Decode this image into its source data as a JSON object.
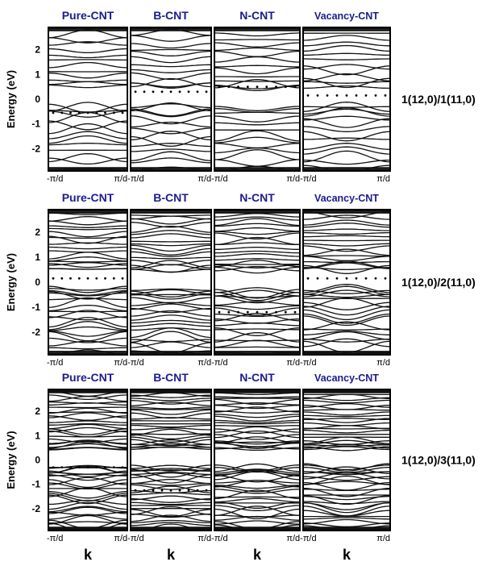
{
  "chart_data": {
    "type": "line",
    "description_free": true,
    "columns": [
      "Pure-CNT",
      "B-CNT",
      "N-CNT",
      "Vacancy-CNT"
    ],
    "rows": [
      {
        "label": "1(12,0)/1(11,0)",
        "fermi": [
          -0.55,
          0.3,
          0.5,
          0.15
        ],
        "band_count": 26
      },
      {
        "label": "1(12,0)/2(11,0)",
        "fermi": [
          0.15,
          null,
          -1.2,
          0.15
        ],
        "band_count": 38
      },
      {
        "label": "1(12,0)/3(11,0)",
        "fermi": [
          -0.3,
          -1.25,
          null,
          null
        ],
        "band_count": 50
      }
    ],
    "ylabel": "Energy (eV)",
    "xlabel": "k",
    "ylim": [
      -2.9,
      2.9
    ],
    "yticks": [
      -2,
      -1,
      0,
      1,
      2
    ],
    "xtick_left": "-π/d",
    "xtick_right": "π/d",
    "xtick_joined": "π/d-π/d",
    "grid": false,
    "title_color": "#1b1b8f"
  }
}
